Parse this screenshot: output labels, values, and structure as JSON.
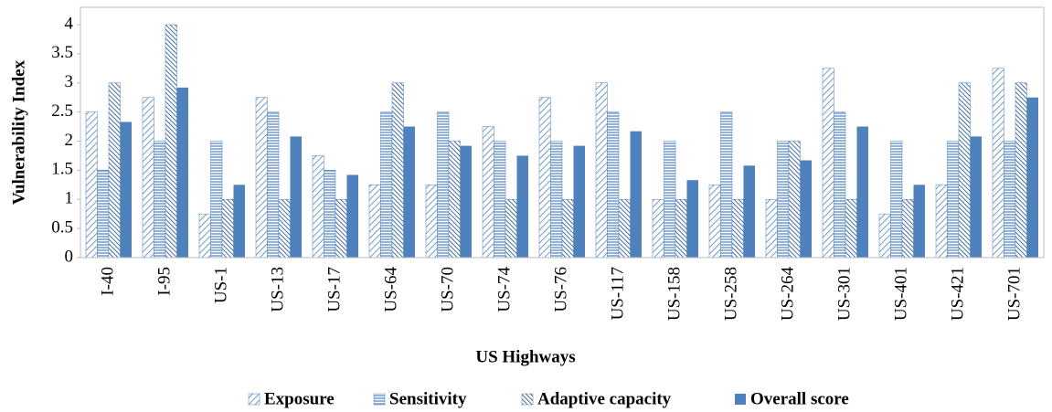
{
  "chart_data": {
    "type": "bar",
    "y_label": "Vulnerability Index",
    "x_label": "US Highways",
    "categories": [
      "I-40",
      "I-95",
      "US-1",
      "US-13",
      "US-17",
      "US-64",
      "US-70",
      "US-74",
      "US-76",
      "US-117",
      "US-158",
      "US-258",
      "US-264",
      "US-301",
      "US-401",
      "US-421",
      "US-701"
    ],
    "series": [
      {
        "name": "Exposure",
        "color": "#4f81bd",
        "pattern": "diagonal",
        "values": [
          2.5,
          2.75,
          0.75,
          2.75,
          1.75,
          1.25,
          1.25,
          2.25,
          2.75,
          3,
          1,
          1.25,
          1,
          3.25,
          0.75,
          1.25,
          3.25
        ]
      },
      {
        "name": "Sensitivity",
        "color": "#4f81bd",
        "pattern": "horizontal",
        "values": [
          1.5,
          2,
          2,
          2.5,
          1.5,
          2.5,
          2.5,
          2,
          2,
          2.5,
          2,
          2.5,
          2,
          2.5,
          2,
          2,
          2
        ]
      },
      {
        "name": "Adaptive capacity",
        "color": "#4f81bd",
        "pattern": "backdiagonal",
        "values": [
          3,
          4,
          1,
          1,
          1,
          3,
          2,
          1,
          1,
          1,
          1,
          1,
          2,
          1,
          1,
          3,
          3
        ]
      },
      {
        "name": "Overall score",
        "color": "#4f81bd",
        "pattern": "solid",
        "values": [
          2.33,
          2.92,
          1.25,
          2.08,
          1.42,
          2.25,
          1.92,
          1.75,
          1.92,
          2.17,
          1.33,
          1.58,
          1.67,
          2.25,
          1.25,
          2.08,
          2.75
        ]
      }
    ],
    "ylim": [
      0,
      4
    ],
    "yticks": [
      0,
      0.5,
      1,
      1.5,
      2,
      2.5,
      3,
      3.5,
      4
    ],
    "legend": "bottom"
  }
}
